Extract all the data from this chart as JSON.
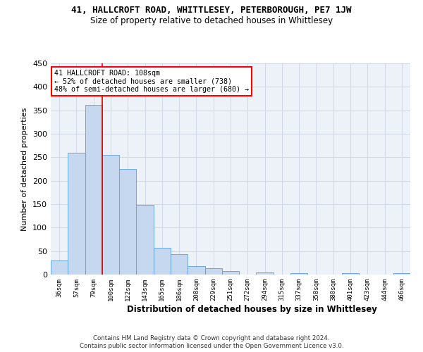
{
  "title1": "41, HALLCROFT ROAD, WHITTLESEY, PETERBOROUGH, PE7 1JW",
  "title2": "Size of property relative to detached houses in Whittlesey",
  "xlabel": "Distribution of detached houses by size in Whittlesey",
  "ylabel": "Number of detached properties",
  "bar_color": "#c5d8f0",
  "bar_edge_color": "#5a9fd4",
  "categories": [
    "36sqm",
    "57sqm",
    "79sqm",
    "100sqm",
    "122sqm",
    "143sqm",
    "165sqm",
    "186sqm",
    "208sqm",
    "229sqm",
    "251sqm",
    "272sqm",
    "294sqm",
    "315sqm",
    "337sqm",
    "358sqm",
    "380sqm",
    "401sqm",
    "423sqm",
    "444sqm",
    "466sqm"
  ],
  "values": [
    30,
    260,
    362,
    255,
    225,
    148,
    57,
    43,
    18,
    13,
    8,
    0,
    5,
    0,
    3,
    0,
    0,
    3,
    0,
    0,
    3
  ],
  "ylim": [
    0,
    450
  ],
  "yticks": [
    0,
    50,
    100,
    150,
    200,
    250,
    300,
    350,
    400,
    450
  ],
  "annotation_line1": "41 HALLCROFT ROAD: 108sqm",
  "annotation_line2": "← 52% of detached houses are smaller (738)",
  "annotation_line3": "48% of semi-detached houses are larger (680) →",
  "vline_x": 2.5,
  "vline_color": "#cc0000",
  "footer1": "Contains HM Land Registry data © Crown copyright and database right 2024.",
  "footer2": "Contains public sector information licensed under the Open Government Licence v3.0.",
  "grid_color": "#d0d8e8",
  "background_color": "#edf2f9"
}
